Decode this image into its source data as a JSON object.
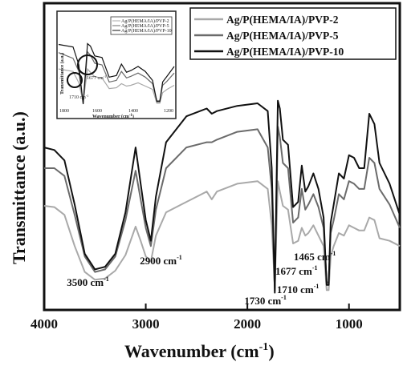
{
  "chart_data": {
    "type": "line",
    "title": "",
    "xlabel": "Wavenumber (cm",
    "xlabel_sup": "-1",
    "xlabel_suffix": ")",
    "ylabel": "Transmittance (a.u.)",
    "xlim": [
      4000,
      500
    ],
    "ylim": [
      0,
      1
    ],
    "x_reversed": true,
    "y_ticks_shown": false,
    "grid": false,
    "legend_position": "top-right",
    "x_ticks": [
      4000,
      3000,
      2000,
      1000
    ],
    "x_tick_labels": [
      "4000",
      "3000",
      "2000",
      "1000"
    ],
    "series": [
      {
        "name": "Ag/P(HEMA/IA)/PVP-2",
        "color": "#a9a9a9",
        "x": [
          4000,
          3900,
          3800,
          3700,
          3600,
          3500,
          3400,
          3300,
          3200,
          3100,
          3050,
          3000,
          2950,
          2900,
          2800,
          2600,
          2400,
          2350,
          2300,
          2100,
          1900,
          1800,
          1760,
          1730,
          1700,
          1680,
          1650,
          1600,
          1550,
          1500,
          1465,
          1430,
          1400,
          1350,
          1300,
          1250,
          1220,
          1200,
          1180,
          1150,
          1100,
          1050,
          1000,
          950,
          900,
          850,
          800,
          750,
          700,
          600,
          500
        ],
        "y": [
          0.355,
          0.35,
          0.32,
          0.2,
          0.1,
          0.07,
          0.075,
          0.105,
          0.165,
          0.275,
          0.22,
          0.16,
          0.14,
          0.24,
          0.33,
          0.37,
          0.41,
          0.38,
          0.41,
          0.44,
          0.45,
          0.42,
          0.28,
          0.04,
          0.45,
          0.41,
          0.355,
          0.34,
          0.21,
          0.22,
          0.27,
          0.24,
          0.25,
          0.28,
          0.24,
          0.2,
          0.03,
          0.03,
          0.16,
          0.2,
          0.25,
          0.24,
          0.28,
          0.27,
          0.26,
          0.26,
          0.31,
          0.3,
          0.23,
          0.22,
          0.2
        ]
      },
      {
        "name": "Ag/P(HEMA/IA)/PVP-5",
        "color": "#6b6b6b",
        "x": [
          4000,
          3900,
          3800,
          3700,
          3600,
          3500,
          3400,
          3300,
          3200,
          3100,
          3050,
          3000,
          2950,
          2900,
          2800,
          2600,
          2400,
          2350,
          2300,
          2100,
          1900,
          1800,
          1760,
          1730,
          1700,
          1680,
          1650,
          1600,
          1550,
          1500,
          1465,
          1430,
          1400,
          1350,
          1300,
          1250,
          1220,
          1200,
          1180,
          1150,
          1100,
          1050,
          1000,
          950,
          900,
          850,
          800,
          750,
          700,
          600,
          500
        ],
        "y": [
          0.5,
          0.5,
          0.47,
          0.32,
          0.16,
          0.1,
          0.11,
          0.16,
          0.3,
          0.49,
          0.38,
          0.27,
          0.2,
          0.34,
          0.5,
          0.58,
          0.6,
          0.6,
          0.61,
          0.64,
          0.65,
          0.58,
          0.42,
          0.03,
          0.66,
          0.62,
          0.52,
          0.5,
          0.29,
          0.31,
          0.42,
          0.34,
          0.36,
          0.4,
          0.35,
          0.27,
          0.06,
          0.06,
          0.25,
          0.3,
          0.4,
          0.38,
          0.45,
          0.44,
          0.42,
          0.42,
          0.54,
          0.52,
          0.42,
          0.36,
          0.27
        ]
      },
      {
        "name": "Ag/P(HEMA/IA)/PVP-10",
        "color": "#111111",
        "x": [
          4000,
          3900,
          3800,
          3700,
          3600,
          3500,
          3400,
          3300,
          3200,
          3100,
          3050,
          3000,
          2950,
          2900,
          2800,
          2600,
          2400,
          2350,
          2300,
          2100,
          1900,
          1800,
          1760,
          1730,
          1700,
          1680,
          1650,
          1600,
          1550,
          1500,
          1465,
          1430,
          1400,
          1350,
          1300,
          1250,
          1220,
          1200,
          1180,
          1150,
          1100,
          1050,
          1000,
          950,
          900,
          850,
          800,
          750,
          700,
          600,
          500
        ],
        "y": [
          0.58,
          0.57,
          0.53,
          0.36,
          0.17,
          0.11,
          0.12,
          0.17,
          0.33,
          0.58,
          0.44,
          0.3,
          0.22,
          0.39,
          0.6,
          0.7,
          0.73,
          0.71,
          0.72,
          0.74,
          0.75,
          0.72,
          0.5,
          0.02,
          0.76,
          0.73,
          0.61,
          0.59,
          0.35,
          0.37,
          0.51,
          0.41,
          0.43,
          0.48,
          0.42,
          0.31,
          0.05,
          0.05,
          0.29,
          0.36,
          0.48,
          0.46,
          0.55,
          0.54,
          0.5,
          0.5,
          0.71,
          0.67,
          0.52,
          0.44,
          0.32
        ]
      }
    ],
    "annotations": [
      {
        "text": "3500 cm",
        "sup": "-1",
        "x": 3500
      },
      {
        "text": "2900 cm",
        "sup": "-1",
        "x": 2900
      },
      {
        "text": "1730 cm",
        "sup": "-1",
        "x": 1730
      },
      {
        "text": "1710 cm",
        "sup": "-1",
        "x": 1710
      },
      {
        "text": "1677 cm",
        "sup": "-1",
        "x": 1677
      },
      {
        "text": "1465 cm",
        "sup": "-1",
        "x": 1465
      }
    ],
    "inset": {
      "ylabel": "Transmittance (a.u.)",
      "xlabel": "Wavenumber (cm",
      "xlabel_sup": "-1",
      "xlabel_suffix": ")",
      "legend": [
        "Ag/P(HEMA/IA)/PVP-2",
        "Ag/P(HEMA/IA)/PVP-5",
        "Ag/P(HEMA/IA)/PVP-10"
      ],
      "annotations": [
        "1677 cm",
        "1710 cm"
      ],
      "annotation_sup": "-1",
      "x_tick_labels": [
        "1800",
        "1600",
        "1400",
        "1200"
      ]
    }
  }
}
